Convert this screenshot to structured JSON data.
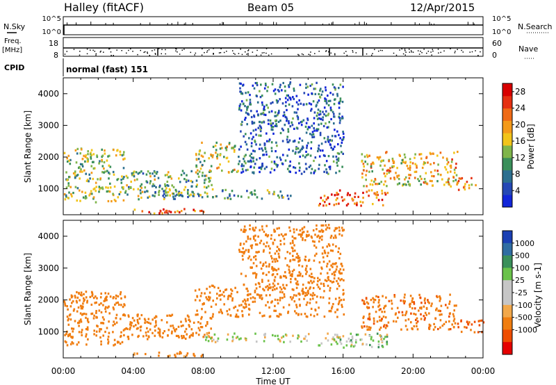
{
  "header": {
    "station": "Halley (fitACF)",
    "beam": "Beam 05",
    "date": "12/Apr/2015"
  },
  "status_panels": {
    "nsky_label": "N.Sky",
    "nsky_ticks": [
      "10^5",
      "10^0"
    ],
    "nsearch_label": "N.Search",
    "nsearch_ticks": [
      "10^5",
      "10^0"
    ],
    "freq_label_1": "Freq.",
    "freq_label_2": "[MHz]",
    "freq_ticks": [
      "18",
      "8"
    ],
    "nave_label": "Nave",
    "nave_ticks": [
      "60",
      "0"
    ],
    "cpid_label": "CPID",
    "cpid_text": "normal (fast) 151"
  },
  "colors": {
    "power_scale": [
      "#1226d9",
      "#2548b5",
      "#2c6f8f",
      "#3a8f5a",
      "#7fb54a",
      "#f2c41a",
      "#f49a1a",
      "#ef6a16",
      "#e53012",
      "#d80000"
    ],
    "velocity_scale": [
      "#e50000",
      "#ef4d00",
      "#f07d10",
      "#f2a84a",
      "#c6c6c6",
      "#c6c6c6",
      "#6ac24a",
      "#3a8f5a",
      "#2f6da2",
      "#1a3fb3"
    ]
  },
  "chart_data": [
    {
      "type": "heatmap",
      "title": "",
      "xlabel": "",
      "ylabel": "Slant Range [km]",
      "x_ticks": [
        "00:00",
        "04:00",
        "08:00",
        "12:00",
        "16:00",
        "20:00",
        "00:00"
      ],
      "y_ticks": [
        "1000",
        "2000",
        "3000",
        "4000"
      ],
      "xlim_hours": [
        0,
        24
      ],
      "ylim_km": [
        180,
        4500
      ],
      "colorbar_label": "Power [dB]",
      "colorbar_ticks": [
        "4",
        "8",
        "12",
        "16",
        "20",
        "24",
        "28"
      ],
      "colorbar_range": [
        0,
        30
      ],
      "echo_regions": [
        {
          "t0": 0.0,
          "t1": 3.5,
          "r0": 600,
          "r1": 2300,
          "level": 14
        },
        {
          "t0": 3.5,
          "t1": 8.5,
          "r0": 800,
          "r1": 1600,
          "level": 12
        },
        {
          "t0": 7.5,
          "t1": 10.0,
          "r0": 1500,
          "r1": 2500,
          "level": 15
        },
        {
          "t0": 4.0,
          "t1": 13.0,
          "r0": 700,
          "r1": 1000,
          "level": 10
        },
        {
          "t0": 4.0,
          "t1": 8.0,
          "r0": 250,
          "r1": 400,
          "level": 22
        },
        {
          "t0": 14.5,
          "t1": 18.5,
          "r0": 500,
          "r1": 1000,
          "level": 24
        },
        {
          "t0": 17.0,
          "t1": 22.5,
          "r0": 1100,
          "r1": 2200,
          "level": 18
        },
        {
          "t0": 22.5,
          "t1": 24.0,
          "r0": 1000,
          "r1": 1400,
          "level": 20
        },
        {
          "t0": 10.0,
          "t1": 16.0,
          "r0": 1500,
          "r1": 4400,
          "level": 6
        }
      ]
    },
    {
      "type": "heatmap",
      "title": "",
      "xlabel": "Time UT",
      "ylabel": "Slant Range [km]",
      "x_ticks": [
        "00:00",
        "04:00",
        "08:00",
        "12:00",
        "16:00",
        "20:00",
        "00:00"
      ],
      "y_ticks": [
        "1000",
        "2000",
        "3000",
        "4000"
      ],
      "xlim_hours": [
        0,
        24
      ],
      "ylim_km": [
        180,
        4500
      ],
      "colorbar_label": "Velocity [m s-1]",
      "colorbar_ticks": [
        "1000",
        "500",
        "100",
        "25",
        "-25",
        "-100",
        "-500",
        "-1000"
      ],
      "echo_regions": [
        {
          "t0": 0.0,
          "t1": 3.5,
          "r0": 600,
          "r1": 2300,
          "vel": -200
        },
        {
          "t0": 3.5,
          "t1": 8.5,
          "r0": 800,
          "r1": 1600,
          "vel": -300
        },
        {
          "t0": 7.5,
          "t1": 10.0,
          "r0": 1500,
          "r1": 2500,
          "vel": -250
        },
        {
          "t0": 8.0,
          "t1": 14.0,
          "r0": 700,
          "r1": 1000,
          "vel": 0
        },
        {
          "t0": 4.0,
          "t1": 8.0,
          "r0": 250,
          "r1": 400,
          "vel": -150
        },
        {
          "t0": 14.5,
          "t1": 18.5,
          "r0": 500,
          "r1": 1000,
          "vel": 30
        },
        {
          "t0": 17.0,
          "t1": 22.5,
          "r0": 1100,
          "r1": 2200,
          "vel": -400
        },
        {
          "t0": 22.5,
          "t1": 24.0,
          "r0": 1000,
          "r1": 1400,
          "vel": -600
        },
        {
          "t0": 10.0,
          "t1": 16.0,
          "r0": 1500,
          "r1": 4400,
          "vel": -200
        }
      ]
    }
  ]
}
